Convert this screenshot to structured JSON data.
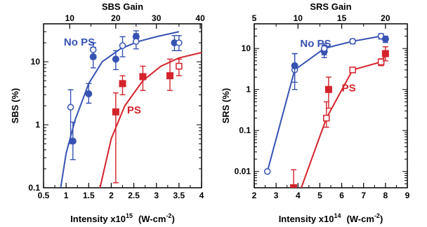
{
  "colors": {
    "blue": "#3653b3",
    "red": "#d4232b",
    "axis": "#000000"
  },
  "chart_data": [
    {
      "type": "scatter",
      "panel": "left",
      "title": "SBS Gain",
      "xlabel_prefix": "Intensity x10",
      "xlabel_exp": "15",
      "xlabel_units_a": "(W-cm",
      "xlabel_units_exp": "-2",
      "xlabel_units_b": ")",
      "ylabel": "SBS (%)",
      "y_scale": "log",
      "xlim": [
        0.5,
        4
      ],
      "ylim": [
        0.1,
        40
      ],
      "x_ticks": [
        "0.5",
        "1",
        "1.5",
        "2",
        "2.5",
        "3",
        "3.5",
        "4"
      ],
      "x_tick_values": [
        0.5,
        1,
        1.5,
        2,
        2.5,
        3,
        3.5,
        4
      ],
      "y_ticks": [
        "0.1",
        "1",
        "10"
      ],
      "y_tick_values": [
        0.1,
        1,
        10
      ],
      "top_axis": {
        "label": "SBS Gain",
        "ticks": [
          "10",
          "20",
          "30",
          "40"
        ],
        "tick_positions_x": [
          1.08,
          2.1,
          3.0,
          3.97
        ],
        "minor_positions_x": [
          1.55,
          2.55,
          3.5
        ]
      },
      "series": [
        {
          "name": "No PS",
          "color_key": "blue",
          "label_at": {
            "x": 0.95,
            "y": 18
          },
          "points": [
            {
              "x": 1.15,
              "y": 0.55,
              "lo": 0.28,
              "hi": 1.1,
              "marker": "filled-circle"
            },
            {
              "x": 1.1,
              "y": 1.9,
              "lo": 0.5,
              "hi": 3.6,
              "marker": "open-circle"
            },
            {
              "x": 1.5,
              "y": 3.1,
              "lo": 2.2,
              "hi": 4.5,
              "marker": "filled-circle"
            },
            {
              "x": 1.6,
              "y": 12,
              "lo": 8,
              "hi": 17,
              "marker": "filled-circle"
            },
            {
              "x": 1.6,
              "y": 15.5,
              "lo": 11,
              "hi": 20,
              "marker": "open-circle"
            },
            {
              "x": 2.1,
              "y": 11,
              "lo": 7.5,
              "hi": 15,
              "marker": "filled-circle"
            },
            {
              "x": 2.25,
              "y": 18,
              "lo": 12,
              "hi": 25,
              "marker": "open-circle"
            },
            {
              "x": 2.55,
              "y": 25,
              "lo": 20,
              "hi": 31,
              "marker": "filled-circle"
            },
            {
              "x": 2.55,
              "y": 21,
              "lo": 16,
              "hi": 28,
              "marker": "open-circle"
            },
            {
              "x": 3.4,
              "y": 20,
              "lo": 15,
              "hi": 26,
              "marker": "filled-circle"
            },
            {
              "x": 3.5,
              "y": 20,
              "lo": 15,
              "hi": 26,
              "marker": "open-circle"
            }
          ],
          "fit": [
            [
              0.88,
              0.1
            ],
            [
              1.0,
              0.35
            ],
            [
              1.2,
              1.2
            ],
            [
              1.5,
              4.5
            ],
            [
              1.8,
              10
            ],
            [
              2.2,
              16
            ],
            [
              2.6,
              21
            ],
            [
              3.0,
              25
            ],
            [
              3.5,
              30
            ]
          ]
        },
        {
          "name": "PS",
          "color_key": "red",
          "label_at": {
            "x": 2.35,
            "y": 1.5
          },
          "points": [
            {
              "x": 2.1,
              "y": 1.6,
              "lo": 0.12,
              "hi": 3.2,
              "marker": "filled-square"
            },
            {
              "x": 2.25,
              "y": 4.5,
              "lo": 3.0,
              "hi": 6.0,
              "marker": "filled-square"
            },
            {
              "x": 2.7,
              "y": 5.8,
              "lo": 3.5,
              "hi": 8.5,
              "marker": "filled-square"
            },
            {
              "x": 3.3,
              "y": 6.0,
              "lo": 3.5,
              "hi": 11,
              "marker": "filled-square"
            },
            {
              "x": 3.5,
              "y": 8.5,
              "lo": 6,
              "hi": 11,
              "marker": "open-square"
            }
          ],
          "fit": [
            [
              1.75,
              0.1
            ],
            [
              2.0,
              0.6
            ],
            [
              2.3,
              2.0
            ],
            [
              2.7,
              5.0
            ],
            [
              3.1,
              8.5
            ],
            [
              3.5,
              11.5
            ],
            [
              4.0,
              14
            ]
          ]
        }
      ]
    },
    {
      "type": "line",
      "panel": "right",
      "title": "SRS Gain",
      "xlabel_prefix": "Intensity x10",
      "xlabel_exp": "14",
      "xlabel_units_a": "(W-cm",
      "xlabel_units_exp": "-2",
      "xlabel_units_b": ")",
      "ylabel": "SRS (%)",
      "y_scale": "log",
      "xlim": [
        2,
        9
      ],
      "ylim": [
        0.004,
        40
      ],
      "x_ticks": [
        "2",
        "3",
        "4",
        "5",
        "6",
        "7",
        "8",
        "9"
      ],
      "x_tick_values": [
        2,
        3,
        4,
        5,
        6,
        7,
        8,
        9
      ],
      "y_ticks": [
        "0.01",
        "0.1",
        "1",
        "10"
      ],
      "y_tick_values": [
        0.01,
        0.1,
        1,
        10
      ],
      "top_axis": {
        "label": "SRS Gain",
        "ticks": [
          "5",
          "10",
          "15",
          "20"
        ],
        "tick_positions_x": [
          2.0,
          4.0,
          6.0,
          8.0
        ],
        "minor_positions_x": [
          3.0,
          5.0,
          7.0
        ]
      },
      "series": [
        {
          "name": "No PS",
          "color_key": "blue",
          "label_at": {
            "x": 4.1,
            "y": 11
          },
          "points": [
            {
              "x": 2.6,
              "y": 0.01,
              "lo": null,
              "hi": null,
              "marker": "open-circle"
            },
            {
              "x": 3.85,
              "y": 3.0,
              "lo": 1.0,
              "hi": 7.5,
              "marker": "open-circle"
            },
            {
              "x": 3.85,
              "y": 3.8,
              "lo": 1.5,
              "hi": 7.5,
              "marker": "filled-circle"
            },
            {
              "x": 5.2,
              "y": 8.5,
              "lo": 6,
              "hi": 12,
              "marker": "filled-circle"
            },
            {
              "x": 5.2,
              "y": 10,
              "lo": 7,
              "hi": 13,
              "marker": "open-circle"
            },
            {
              "x": 6.5,
              "y": 15,
              "lo": 13,
              "hi": 17,
              "marker": "open-circle"
            },
            {
              "x": 7.8,
              "y": 20,
              "lo": 17,
              "hi": 23,
              "marker": "open-circle"
            },
            {
              "x": 8.0,
              "y": 17,
              "lo": 14,
              "hi": 20,
              "marker": "filled-circle"
            }
          ],
          "line": [
            [
              2.6,
              0.01
            ],
            [
              3.85,
              3.0
            ],
            [
              5.2,
              10
            ],
            [
              6.5,
              15
            ],
            [
              7.8,
              20
            ],
            [
              8.0,
              17
            ]
          ]
        },
        {
          "name": "PS",
          "color_key": "red",
          "label_at": {
            "x": 6.0,
            "y": 0.9
          },
          "points": [
            {
              "x": 3.8,
              "y": 0.004,
              "lo": 0.004,
              "hi": 0.011,
              "marker": "filled-square"
            },
            {
              "x": 5.3,
              "y": 0.2,
              "lo": 0.12,
              "hi": 0.5,
              "marker": "open-square"
            },
            {
              "x": 5.4,
              "y": 1.0,
              "lo": 0.35,
              "hi": 2.0,
              "marker": "filled-square"
            },
            {
              "x": 6.5,
              "y": 3.0,
              "lo": 2.6,
              "hi": 3.4,
              "marker": "open-square"
            },
            {
              "x": 7.8,
              "y": 4.7,
              "lo": 3.8,
              "hi": 5.6,
              "marker": "open-square"
            },
            {
              "x": 8.0,
              "y": 7.5,
              "lo": 5,
              "hi": 11,
              "marker": "filled-square"
            }
          ],
          "line": [
            [
              4.15,
              0.004
            ],
            [
              5.3,
              0.2
            ],
            [
              6.5,
              3.0
            ],
            [
              7.8,
              4.7
            ],
            [
              8.0,
              7.0
            ]
          ]
        }
      ]
    }
  ]
}
